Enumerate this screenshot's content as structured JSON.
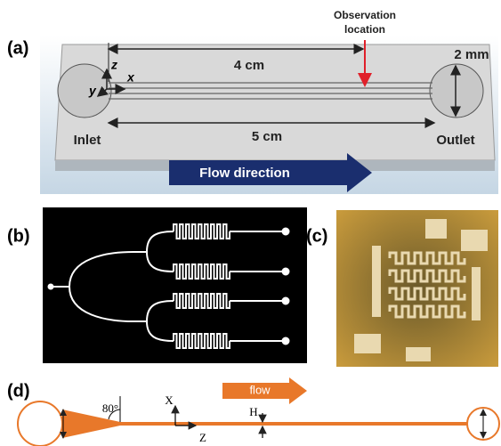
{
  "panels": {
    "a": {
      "label": "(a)",
      "observation": [
        "Observation",
        "location"
      ],
      "length_observation": "4 cm",
      "width": "2 mm",
      "axes": [
        "z",
        "y",
        "x"
      ],
      "inlet": "Inlet",
      "length_total": "5 cm",
      "outlet": "Outlet",
      "flow": "Flow direction"
    },
    "b": {
      "label": "(b)"
    },
    "c": {
      "label": "(c)"
    },
    "d": {
      "label": "(d)",
      "angle": "80°",
      "x_axis": "X",
      "z_axis": "Z",
      "height": "H",
      "flow": "flow"
    }
  }
}
